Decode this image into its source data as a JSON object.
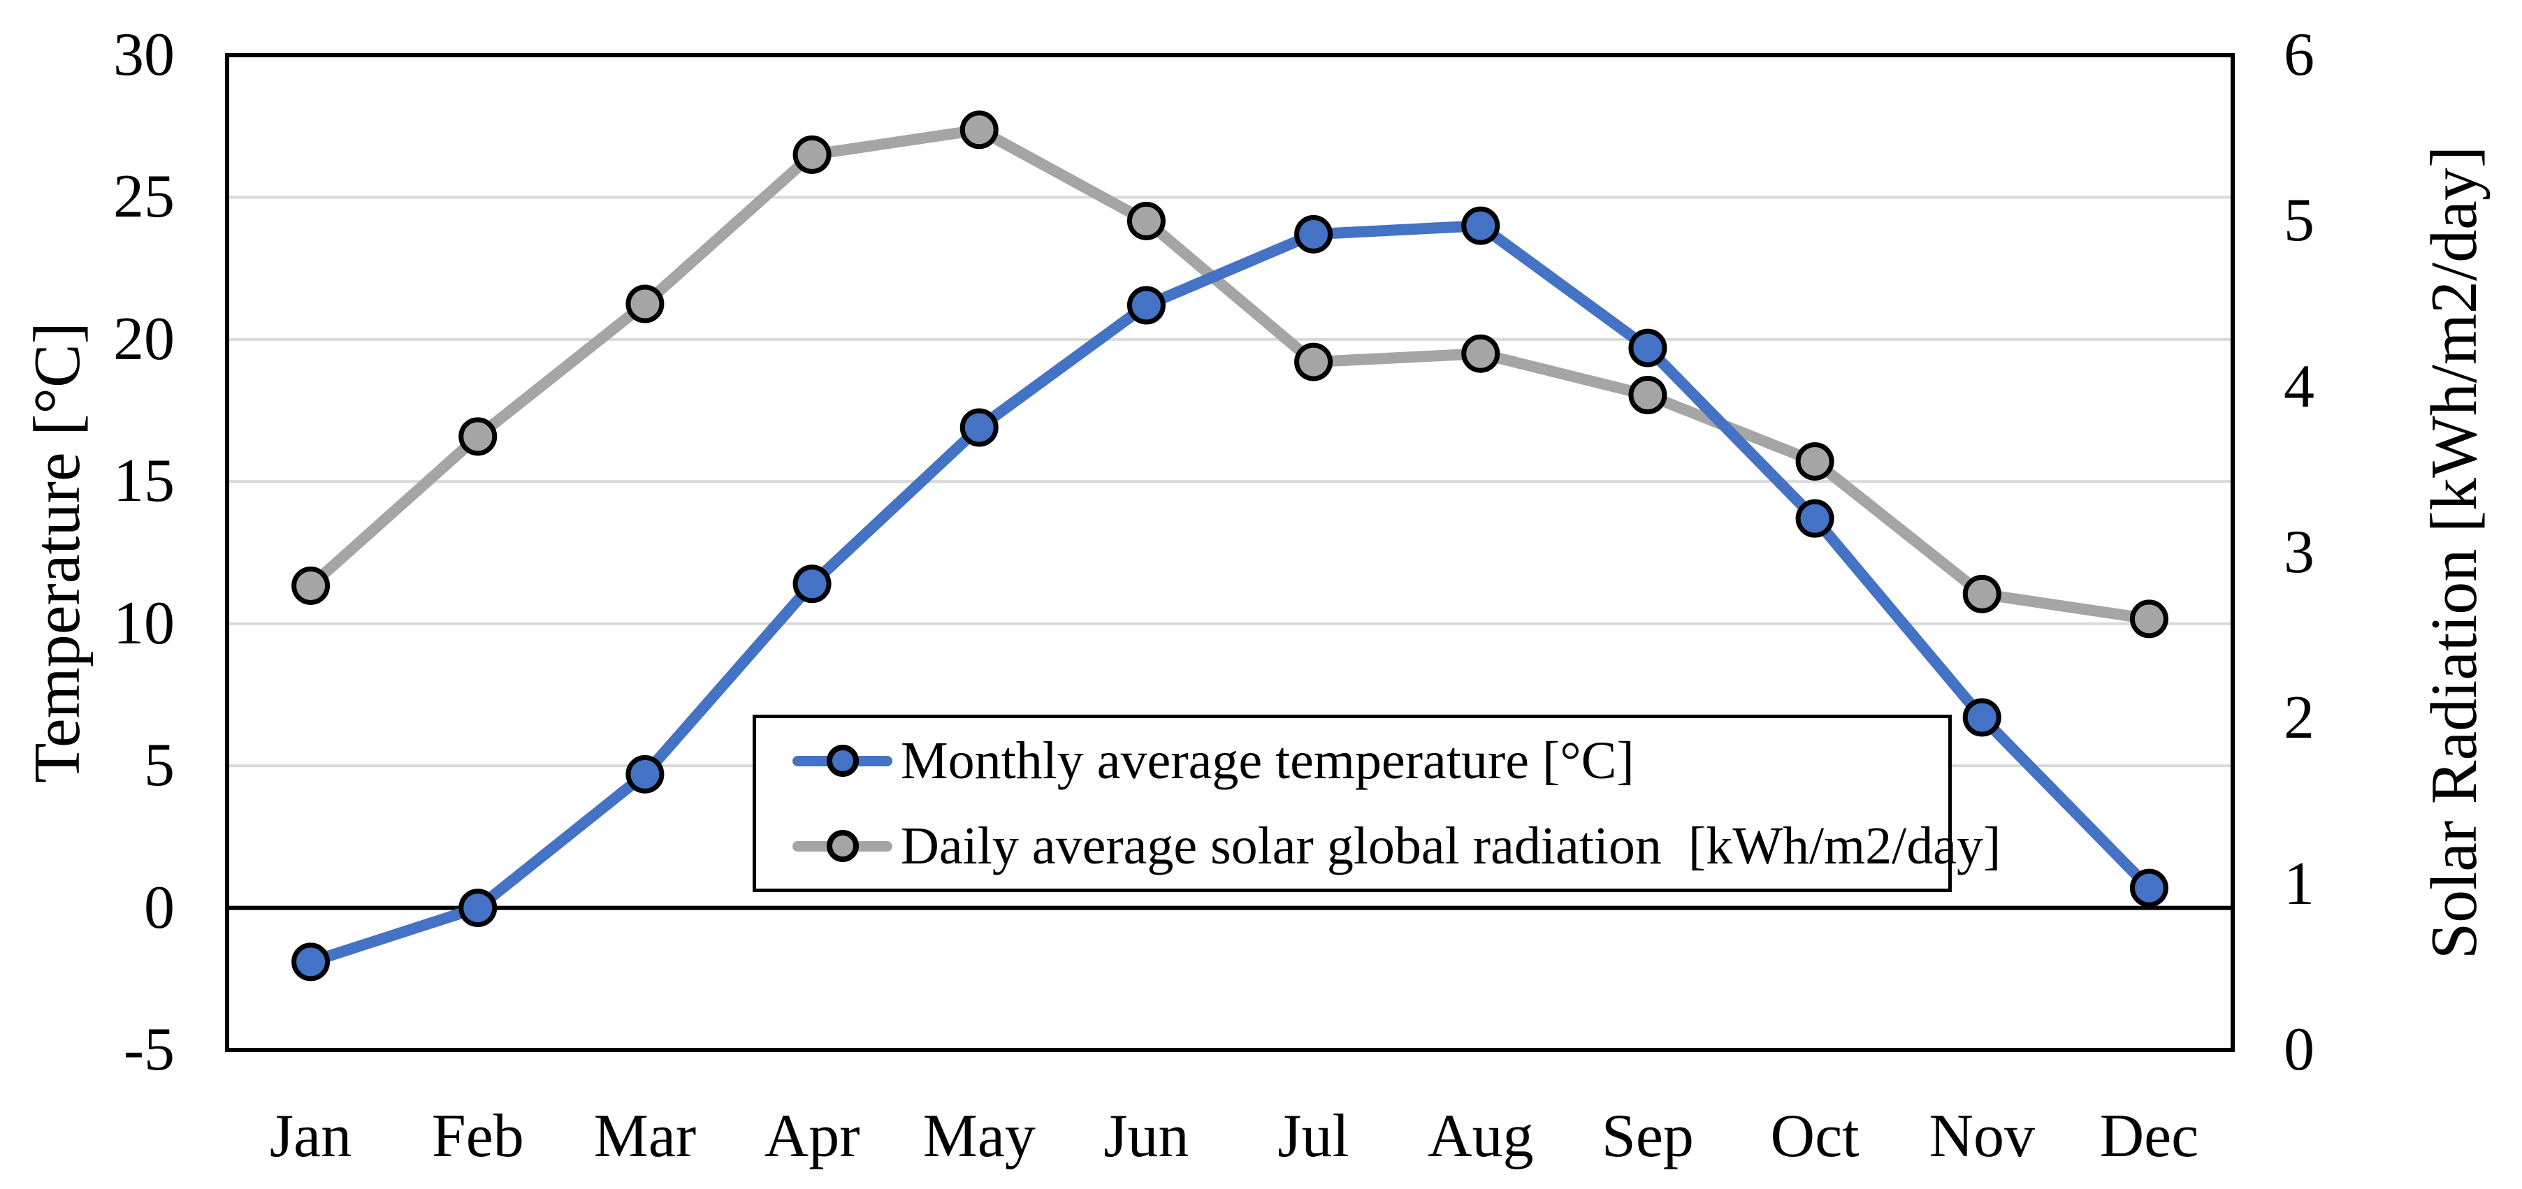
{
  "chart_data": {
    "type": "line",
    "categories": [
      "Jan",
      "Feb",
      "Mar",
      "Apr",
      "May",
      "Jun",
      "Jul",
      "Aug",
      "Sep",
      "Oct",
      "Nov",
      "Dec"
    ],
    "series": [
      {
        "name": "Monthly average temperature [°C]",
        "axis": "left",
        "color": "#4472C4",
        "values": [
          -1.9,
          0.0,
          4.7,
          11.4,
          16.9,
          21.2,
          23.7,
          24.0,
          19.7,
          13.7,
          6.7,
          0.7
        ]
      },
      {
        "name": "Daily average solar global radiation  [kWh/m2/day]",
        "axis": "right",
        "color": "#A5A5A5",
        "values": [
          2.8,
          3.7,
          4.5,
          5.4,
          5.55,
          5.0,
          4.15,
          4.2,
          3.95,
          3.55,
          2.75,
          2.6
        ]
      }
    ],
    "left_axis": {
      "label": "Temperature [°C]",
      "min": -5,
      "max": 30,
      "step": 5,
      "tick_labels": [
        "30",
        "25",
        "20",
        "15",
        "10",
        "5",
        "0",
        "-5"
      ],
      "ticks": [
        30,
        25,
        20,
        15,
        10,
        5,
        0,
        -5
      ]
    },
    "right_axis": {
      "label": "Solar Radiation [kWh/m2/day]",
      "min": 0,
      "max": 6,
      "step": 1,
      "tick_labels": [
        "6",
        "5",
        "4",
        "3",
        "2",
        "1",
        "0"
      ],
      "ticks": [
        6,
        5,
        4,
        3,
        2,
        1,
        0
      ]
    },
    "title": "",
    "grid": true,
    "legend_position": "inside-bottom-center",
    "colors": {
      "gridline": "#D9D9D9",
      "axis_line": "#000000",
      "zero_line": "#000000",
      "background": "#FFFFFF"
    }
  },
  "legend": {
    "items": [
      {
        "label": "Monthly average temperature [°C]",
        "color": "#4472C4"
      },
      {
        "label": "Daily average solar global radiation  [kWh/m2/day]",
        "color": "#A5A5A5"
      }
    ]
  }
}
